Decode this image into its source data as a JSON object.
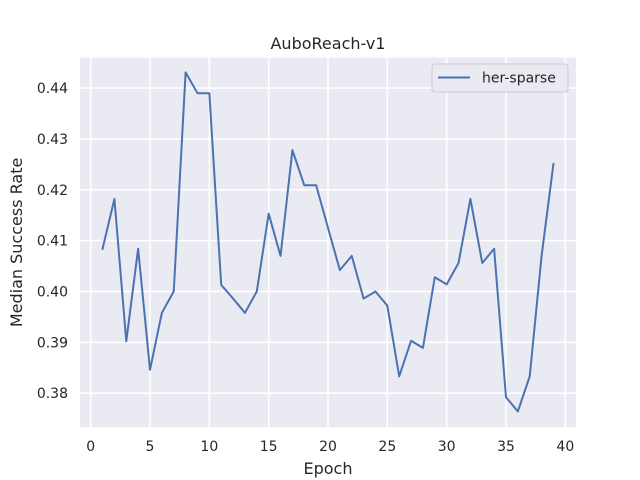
{
  "chart_data": {
    "type": "line",
    "title": "AuboReach-v1",
    "xlabel": "Epoch",
    "ylabel": "Median Success Rate",
    "xlim": [
      -0.9,
      40.9
    ],
    "ylim": [
      0.3733,
      0.446
    ],
    "xticks": [
      0,
      5,
      10,
      15,
      20,
      25,
      30,
      35,
      40
    ],
    "xtick_labels": [
      "0",
      "5",
      "10",
      "15",
      "20",
      "25",
      "30",
      "35",
      "40"
    ],
    "yticks": [
      0.38,
      0.39,
      0.4,
      0.41,
      0.42,
      0.43,
      0.44
    ],
    "ytick_labels": [
      "0.38",
      "0.39",
      "0.40",
      "0.41",
      "0.42",
      "0.43",
      "0.44"
    ],
    "grid": true,
    "legend_position": "upper right",
    "colors": {
      "line": "#4c72b0",
      "background": "#eaeaf2",
      "grid": "#ffffff"
    },
    "series": [
      {
        "name": "her-sparse",
        "x": [
          1,
          2,
          3,
          4,
          5,
          6,
          7,
          8,
          9,
          10,
          11,
          12,
          13,
          14,
          15,
          16,
          17,
          18,
          19,
          20,
          21,
          22,
          23,
          24,
          25,
          26,
          27,
          28,
          29,
          30,
          31,
          32,
          33,
          34,
          35,
          36,
          37,
          38,
          39
        ],
        "values": [
          0.4084,
          0.4182,
          0.3902,
          0.4084,
          0.3846,
          0.3958,
          0.4,
          0.4431,
          0.439,
          0.439,
          0.4013,
          0.3986,
          0.3958,
          0.4,
          0.4153,
          0.407,
          0.4278,
          0.4209,
          0.4209,
          0.4125,
          0.4042,
          0.407,
          0.3986,
          0.4,
          0.3972,
          0.3833,
          0.3903,
          0.3889,
          0.4028,
          0.4014,
          0.4056,
          0.4182,
          0.4056,
          0.4084,
          0.3792,
          0.3764,
          0.3833,
          0.407,
          0.4251
        ]
      }
    ]
  }
}
